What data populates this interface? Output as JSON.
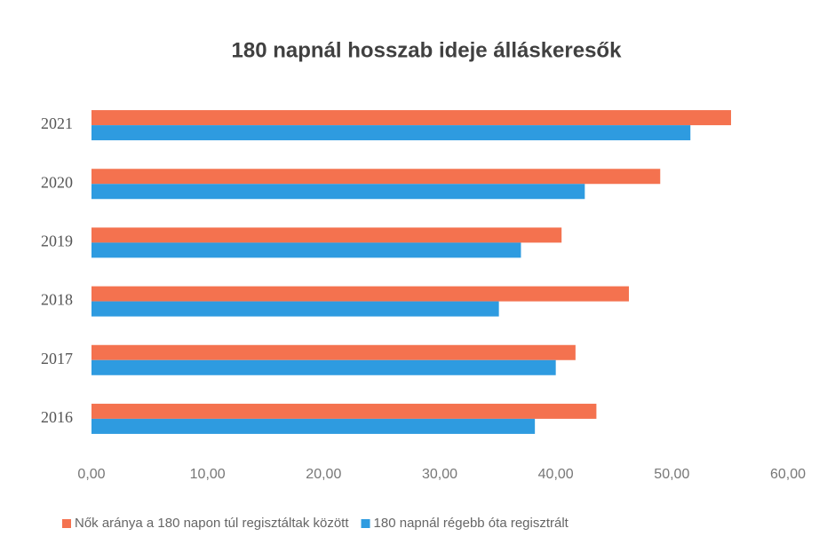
{
  "chart_data": {
    "type": "barh",
    "title": "180 napnál hosszab ideje álláskeresők",
    "categories": [
      "2021",
      "2020",
      "2019",
      "2018",
      "2017",
      "2016"
    ],
    "series": [
      {
        "name": "Nők aránya a 180 napon túl regisztáltak között",
        "color": "#f4724f",
        "values": [
          55.1,
          49.0,
          40.5,
          46.3,
          41.7,
          43.5
        ]
      },
      {
        "name": "180 napnál régebb óta regisztrált",
        "color": "#2e9be0",
        "values": [
          51.6,
          42.5,
          37.0,
          35.1,
          40.0,
          38.2
        ]
      }
    ],
    "xlim": [
      0,
      60
    ],
    "xticks": [
      {
        "value": 0,
        "label": "0,00"
      },
      {
        "value": 10,
        "label": "10,00"
      },
      {
        "value": 20,
        "label": "20,00"
      },
      {
        "value": 30,
        "label": "30,00"
      },
      {
        "value": 40,
        "label": "40,00"
      },
      {
        "value": 50,
        "label": "50,00"
      },
      {
        "value": 60,
        "label": "60,00"
      }
    ],
    "legend": "bottom"
  }
}
